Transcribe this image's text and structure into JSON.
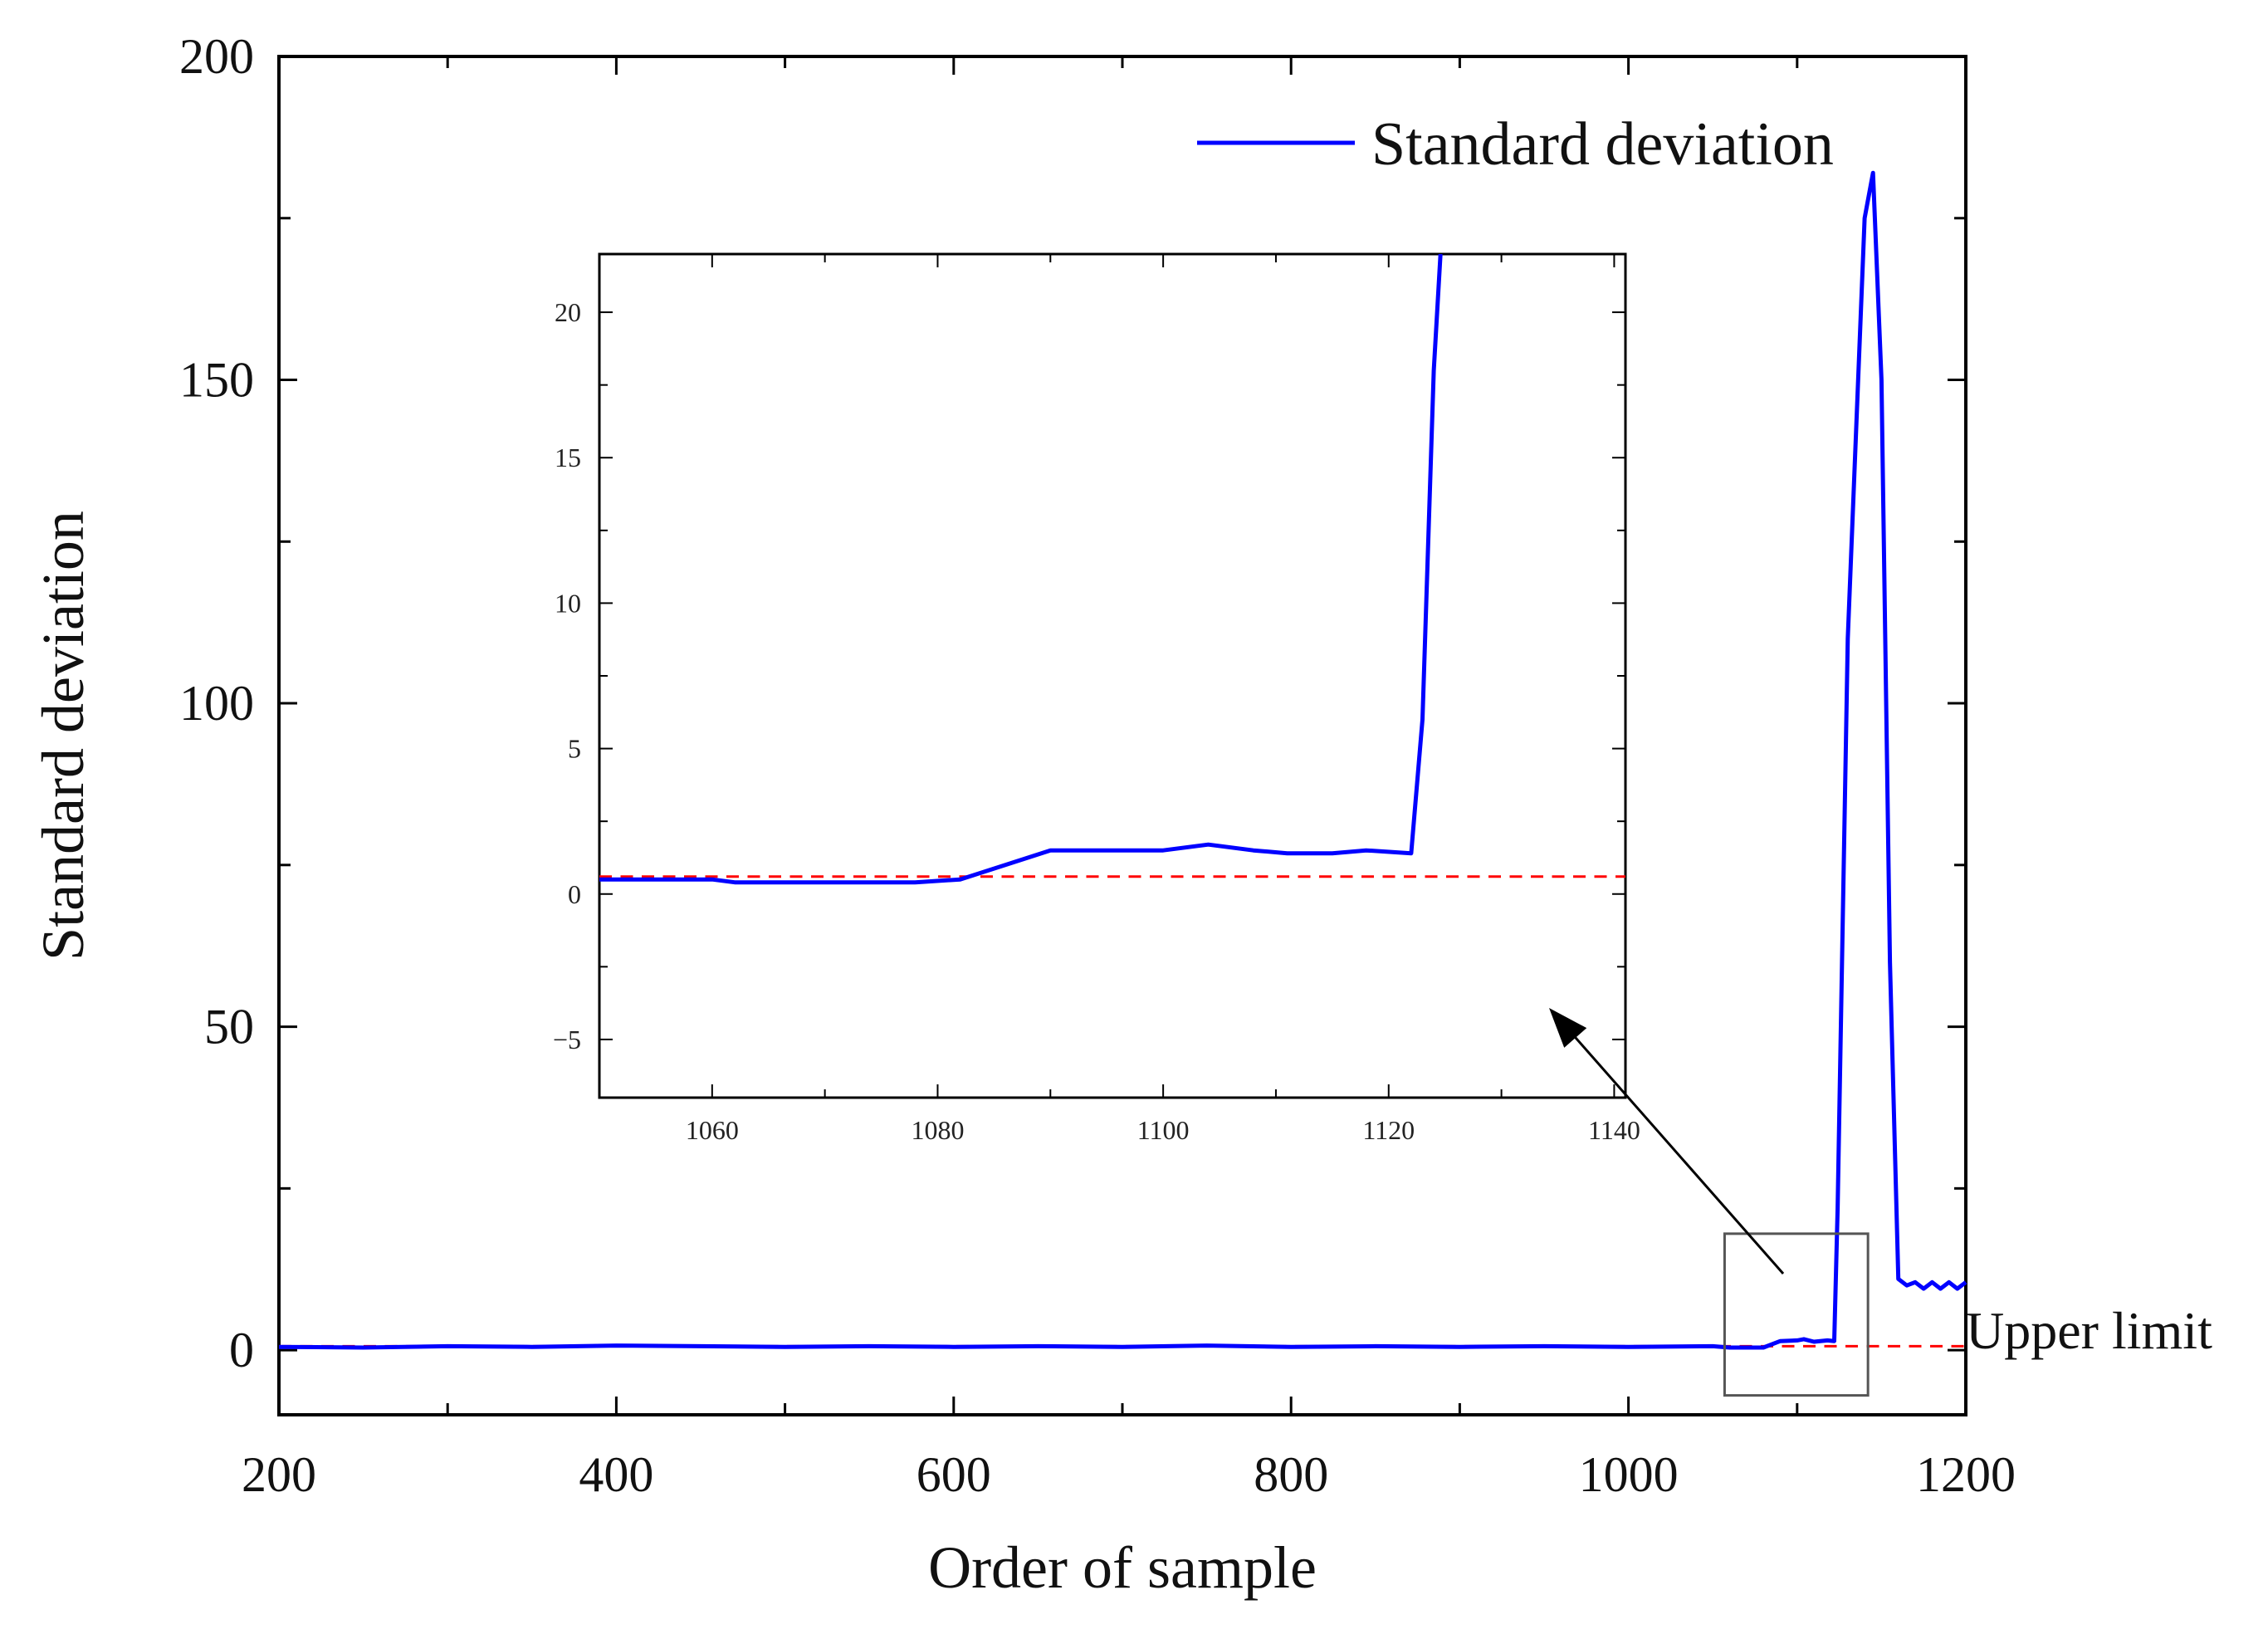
{
  "chart_data": {
    "type": "line",
    "title": "",
    "xlabel": "Order of sample",
    "ylabel": "Standard deviation",
    "xlim": [
      200,
      1200
    ],
    "ylim": [
      -10,
      200
    ],
    "x_ticks": [
      200,
      400,
      600,
      800,
      1000,
      1200
    ],
    "x_tick_labels": [
      "200",
      "400",
      "600",
      "800",
      "1000",
      "1200"
    ],
    "y_ticks": [
      0,
      50,
      100,
      150,
      200
    ],
    "y_tick_labels": [
      "0",
      "50",
      "100",
      "150",
      "200"
    ],
    "legend": {
      "entries": [
        "Standard deviation"
      ],
      "placement": "top-right"
    },
    "series": [
      {
        "name": "Standard deviation",
        "color": "#0000ff",
        "x": [
          200,
          250,
          300,
          350,
          400,
          450,
          500,
          550,
          600,
          650,
          700,
          750,
          800,
          850,
          900,
          950,
          1000,
          1050,
          1060,
          1080,
          1090,
          1100,
          1104,
          1110,
          1118,
          1122,
          1124,
          1130,
          1140,
          1145,
          1150,
          1155,
          1160,
          1165,
          1170,
          1175,
          1180,
          1185,
          1190,
          1195,
          1200
        ],
        "y": [
          0.5,
          0.4,
          0.6,
          0.5,
          0.7,
          0.6,
          0.5,
          0.6,
          0.5,
          0.6,
          0.5,
          0.7,
          0.5,
          0.6,
          0.5,
          0.6,
          0.5,
          0.6,
          0.4,
          0.4,
          1.4,
          1.5,
          1.7,
          1.3,
          1.5,
          1.4,
          22,
          110,
          175,
          182,
          150,
          60,
          11,
          10,
          10.5,
          9.5,
          10.5,
          9.5,
          10.5,
          9.5,
          10.5
        ]
      },
      {
        "name": "Upper limit",
        "color": "#ff0000",
        "style": "dashed",
        "x": [
          200,
          1200
        ],
        "y": [
          0.6,
          0.6
        ]
      }
    ],
    "annotations": [
      {
        "text": "Upper limit",
        "target": "dashed red line",
        "position": "right"
      }
    ],
    "inset": {
      "xlim": [
        1050,
        1141
      ],
      "ylim": [
        -7,
        22
      ],
      "x_ticks": [
        1060,
        1080,
        1100,
        1120,
        1140
      ],
      "x_tick_labels": [
        "1060",
        "1080",
        "1100",
        "1120",
        "1140"
      ],
      "y_ticks": [
        -5,
        0,
        5,
        10,
        15,
        20
      ],
      "y_tick_labels": [
        "−5",
        "0",
        "5",
        "10",
        "15",
        "20"
      ],
      "zoom_region": {
        "xlim": [
          1057,
          1142
        ],
        "ylim": [
          -7,
          18
        ]
      },
      "series": [
        {
          "name": "Standard deviation",
          "color": "#0000ff",
          "x": [
            1050,
            1060,
            1062,
            1070,
            1078,
            1082,
            1086,
            1090,
            1095,
            1100,
            1104,
            1108,
            1111,
            1115,
            1118,
            1122,
            1123,
            1124,
            1124.6
          ],
          "y": [
            0.5,
            0.5,
            0.4,
            0.4,
            0.4,
            0.5,
            1.0,
            1.5,
            1.5,
            1.5,
            1.7,
            1.5,
            1.4,
            1.4,
            1.5,
            1.4,
            6.0,
            18.0,
            22.0
          ]
        },
        {
          "name": "Upper limit",
          "color": "#ff0000",
          "style": "dashed",
          "x": [
            1050,
            1141
          ],
          "y": [
            0.6,
            0.6
          ]
        }
      ]
    }
  }
}
